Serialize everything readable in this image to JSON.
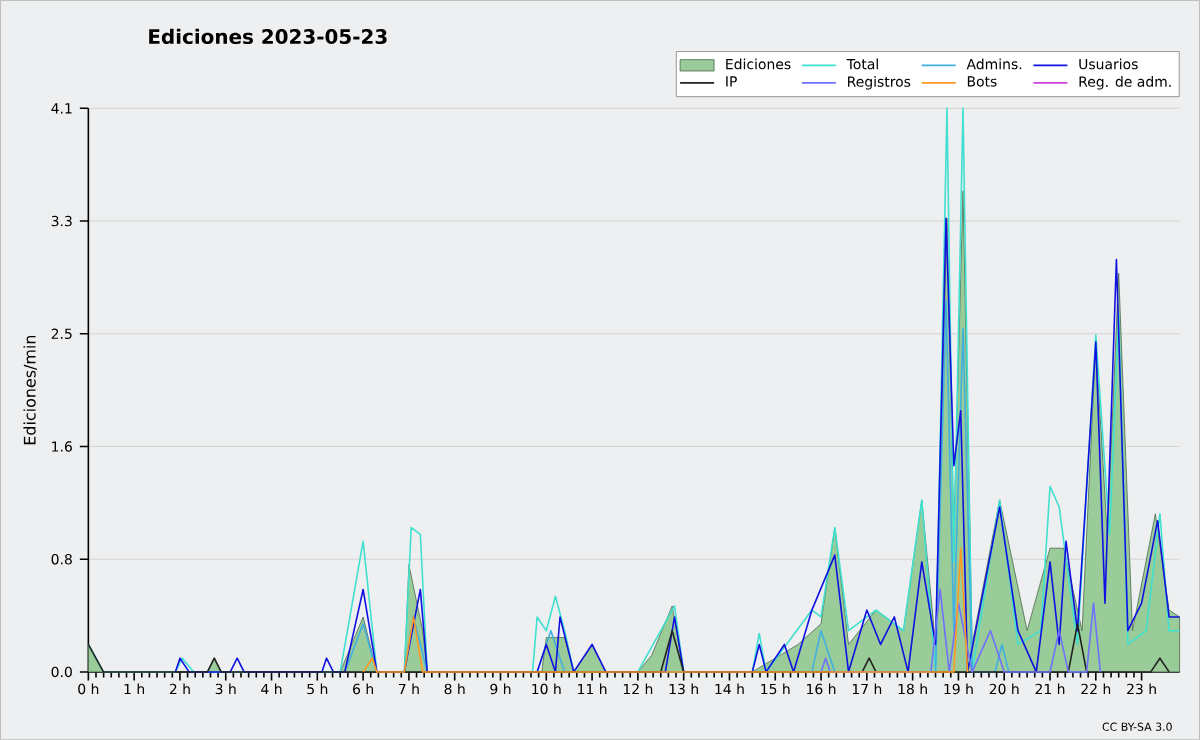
{
  "chart_data": {
    "type": "line",
    "title": "Ediciones  2023-05-23",
    "ylabel": "Ediciones/min",
    "annotations": [
      "CC BY-SA 3.0"
    ],
    "grid": "y",
    "legend": "top right",
    "xlim": [
      0,
      23.83
    ],
    "ylim": [
      0,
      4.1
    ],
    "xticks": [
      {
        "value": 0,
        "label": "0 h"
      },
      {
        "value": 1,
        "label": "1 h"
      },
      {
        "value": 2,
        "label": "2 h"
      },
      {
        "value": 3,
        "label": "3 h"
      },
      {
        "value": 4,
        "label": "4 h"
      },
      {
        "value": 5,
        "label": "5 h"
      },
      {
        "value": 6,
        "label": "6 h"
      },
      {
        "value": 7,
        "label": "7 h"
      },
      {
        "value": 8,
        "label": "8 h"
      },
      {
        "value": 9,
        "label": "9 h"
      },
      {
        "value": 10,
        "label": "10 h"
      },
      {
        "value": 11,
        "label": "11 h"
      },
      {
        "value": 12,
        "label": "12 h"
      },
      {
        "value": 13,
        "label": "13 h"
      },
      {
        "value": 14,
        "label": "14 h"
      },
      {
        "value": 15,
        "label": "15 h"
      },
      {
        "value": 16,
        "label": "16 h"
      },
      {
        "value": 17,
        "label": "17 h"
      },
      {
        "value": 18,
        "label": "18 h"
      },
      {
        "value": 19,
        "label": "19 h"
      },
      {
        "value": 20,
        "label": "20 h"
      },
      {
        "value": 21,
        "label": "21 h"
      },
      {
        "value": 22,
        "label": "22 h"
      },
      {
        "value": 23,
        "label": "23 h"
      }
    ],
    "yticks": [
      {
        "value": 0,
        "label": "0.0"
      },
      {
        "value": 0.82,
        "label": "0.8"
      },
      {
        "value": 1.64,
        "label": "1.6"
      },
      {
        "value": 2.46,
        "label": "2.5"
      },
      {
        "value": 3.28,
        "label": "3.3"
      },
      {
        "value": 4.1,
        "label": "4.1"
      }
    ],
    "series": [
      {
        "name": "Ediciones",
        "type": "area",
        "color": "#99cc99",
        "x": [
          0,
          0.33,
          2.6,
          2.75,
          2.9,
          5.5,
          6.0,
          6.3,
          6.9,
          7.0,
          7.3,
          7.4,
          9.9,
          10.0,
          10.4,
          10.6,
          11.0,
          11.3,
          12.0,
          12.3,
          12.75,
          13.0,
          14.5,
          15.5,
          16.0,
          16.3,
          16.6,
          17.2,
          17.8,
          18.2,
          18.5,
          18.75,
          18.9,
          19.1,
          19.3,
          19.9,
          20.5,
          21.0,
          21.3,
          21.7,
          22.0,
          22.25,
          22.5,
          22.8,
          23.3,
          23.6,
          23.83
        ],
        "values": [
          0.2,
          0,
          0,
          0.1,
          0,
          0,
          0.4,
          0,
          0,
          0.78,
          0.3,
          0,
          0,
          0.25,
          0.25,
          0,
          0.2,
          0,
          0,
          0.12,
          0.48,
          0,
          0,
          0.2,
          0.35,
          1.05,
          0.2,
          0.45,
          0.3,
          1.25,
          0.2,
          3.3,
          1.0,
          3.5,
          0.2,
          1.25,
          0.3,
          0.9,
          0.9,
          0.3,
          2.4,
          1.0,
          2.9,
          0.3,
          1.15,
          0.45,
          0.4
        ]
      },
      {
        "name": "Total",
        "color": "#40e0d0",
        "x": [
          0,
          0.33,
          1.9,
          2.05,
          2.3,
          5.5,
          6.0,
          6.3,
          6.9,
          7.05,
          7.25,
          7.4,
          9.7,
          9.8,
          10.0,
          10.2,
          10.4,
          10.6,
          12.0,
          12.8,
          13.0,
          14.5,
          14.65,
          14.8,
          15.8,
          16.0,
          16.3,
          16.6,
          17.2,
          17.8,
          18.2,
          18.5,
          18.75,
          18.9,
          19.1,
          19.3,
          19.9,
          20.3,
          20.8,
          21.0,
          21.2,
          21.6,
          22.0,
          22.3,
          22.5,
          22.7,
          23.1,
          23.4,
          23.6,
          23.83
        ],
        "values": [
          0.2,
          0,
          0,
          0.1,
          0,
          0,
          0.95,
          0,
          0,
          1.05,
          1.0,
          0,
          0,
          0.4,
          0.3,
          0.55,
          0.3,
          0,
          0,
          0.48,
          0,
          0,
          0.28,
          0,
          0.45,
          0.4,
          1.05,
          0.3,
          0.45,
          0.3,
          1.25,
          0,
          4.1,
          0.8,
          4.1,
          0,
          1.25,
          0.2,
          0.3,
          1.35,
          1.2,
          0.2,
          2.45,
          1.0,
          2.6,
          0.2,
          0.3,
          1.15,
          0.3,
          0.3
        ]
      },
      {
        "name": "Admins.",
        "color": "#40b0e0",
        "x": [
          5.6,
          6.0,
          6.3,
          6.9,
          7.1,
          7.4,
          9.8,
          10.1,
          10.4,
          15.8,
          16.0,
          16.3,
          18.5,
          18.73,
          18.9,
          19.1,
          19.3,
          19.8,
          19.95,
          20.1
        ],
        "values": [
          0,
          0.35,
          0,
          0,
          0.4,
          0,
          0,
          0.3,
          0,
          0,
          0.3,
          0,
          0,
          2.7,
          0.3,
          2.5,
          0,
          0,
          0.2,
          0
        ]
      },
      {
        "name": "Usuarios",
        "color": "#1010e0",
        "x": [
          1.9,
          2.0,
          2.2,
          3.1,
          3.25,
          3.4,
          5.1,
          5.2,
          5.35,
          5.6,
          6.0,
          6.3,
          6.9,
          7.25,
          7.4,
          9.8,
          10.0,
          10.2,
          10.3,
          10.6,
          11.0,
          11.3,
          12.6,
          12.8,
          13.0,
          14.5,
          14.65,
          14.8,
          15.2,
          15.4,
          15.8,
          16.3,
          16.6,
          17.0,
          17.3,
          17.6,
          17.9,
          18.2,
          18.5,
          18.73,
          18.9,
          19.05,
          19.2,
          19.9,
          20.3,
          20.7,
          21.0,
          21.2,
          21.35,
          21.6,
          22.0,
          22.2,
          22.45,
          22.7,
          23.0,
          23.35,
          23.6,
          23.83
        ],
        "values": [
          0,
          0.1,
          0,
          0,
          0.1,
          0,
          0,
          0.1,
          0,
          0,
          0.6,
          0,
          0,
          0.6,
          0,
          0,
          0.2,
          0,
          0.4,
          0,
          0.2,
          0,
          0,
          0.4,
          0,
          0,
          0.2,
          0,
          0.2,
          0,
          0.45,
          0.85,
          0,
          0.45,
          0.2,
          0.4,
          0,
          0.8,
          0.2,
          3.3,
          1.5,
          1.9,
          0,
          1.2,
          0.3,
          0,
          0.8,
          0.2,
          0.95,
          0.3,
          2.4,
          0.5,
          3.0,
          0.3,
          0.5,
          1.1,
          0.4,
          0.4
        ]
      },
      {
        "name": "IP",
        "color": "#222222",
        "x": [
          0,
          0.33,
          2.6,
          2.75,
          2.9,
          12.5,
          12.75,
          13.0,
          16.9,
          17.05,
          17.2,
          21.4,
          21.6,
          21.8,
          23.2,
          23.4,
          23.6
        ],
        "values": [
          0.2,
          0,
          0,
          0.1,
          0,
          0,
          0.3,
          0,
          0,
          0.1,
          0,
          0,
          0.35,
          0,
          0,
          0.1,
          0
        ]
      },
      {
        "name": "Registros",
        "color": "#7070ff",
        "x": [
          16.0,
          16.1,
          16.2,
          18.4,
          18.6,
          18.8,
          19.0,
          19.3,
          19.7,
          20.0,
          21.0,
          21.2,
          21.4,
          21.8,
          21.95,
          22.1
        ],
        "values": [
          0,
          0.1,
          0,
          0,
          0.6,
          0,
          0.5,
          0,
          0.3,
          0,
          0,
          0.3,
          0,
          0,
          0.5,
          0
        ]
      },
      {
        "name": "Bots",
        "color": "#ff9922",
        "x": [
          6.0,
          6.2,
          6.3,
          6.9,
          7.1,
          7.3,
          18.9,
          19.05,
          19.2
        ],
        "values": [
          0,
          0.1,
          0,
          0,
          0.4,
          0,
          0,
          0.9,
          0
        ]
      },
      {
        "name": "Reg. de adm.",
        "color": "#cc44dd"
      }
    ]
  }
}
